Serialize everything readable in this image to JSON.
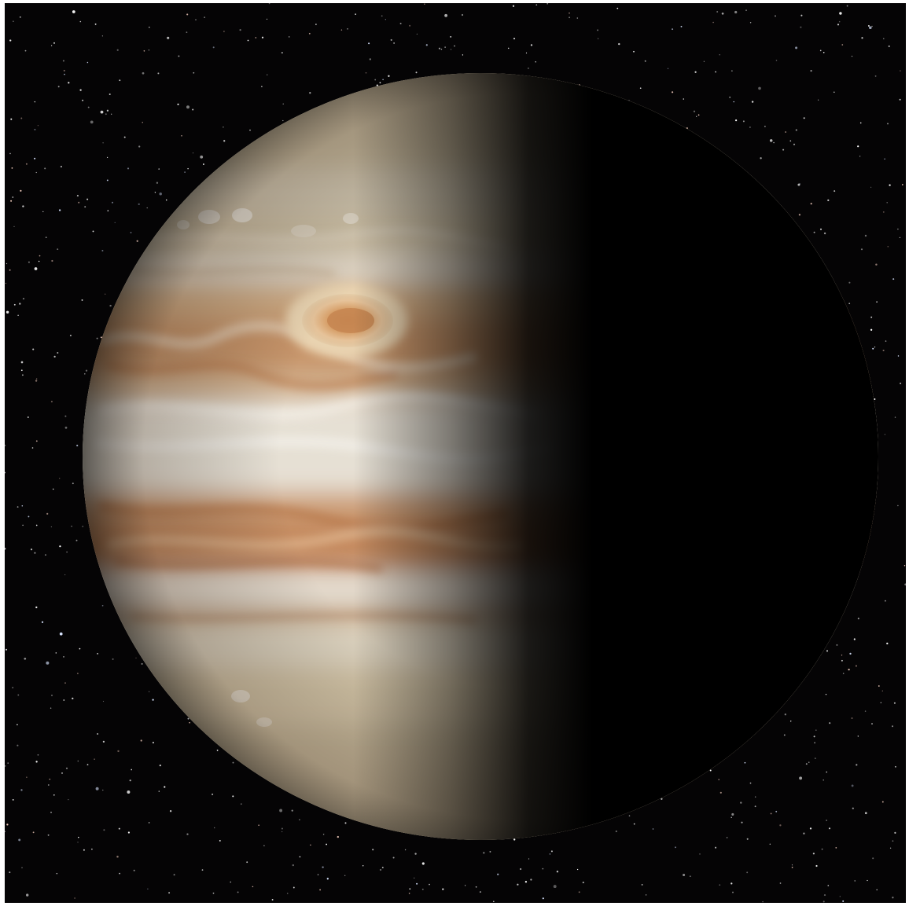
{
  "image": {
    "subject": "planet-jupiter",
    "background_color": "#050405",
    "frame_color": "#ffffff",
    "colors": {
      "pale_band": "#e4dccb",
      "cream_band": "#d8c9aa",
      "tan_band": "#c9a27a",
      "orange_belt": "#c5865a",
      "brown_belt": "#9c6a48",
      "spot_core": "#d69a63",
      "spot_ring": "#e9cfa7",
      "shadow": "#000000",
      "star": "#ffffff"
    }
  }
}
